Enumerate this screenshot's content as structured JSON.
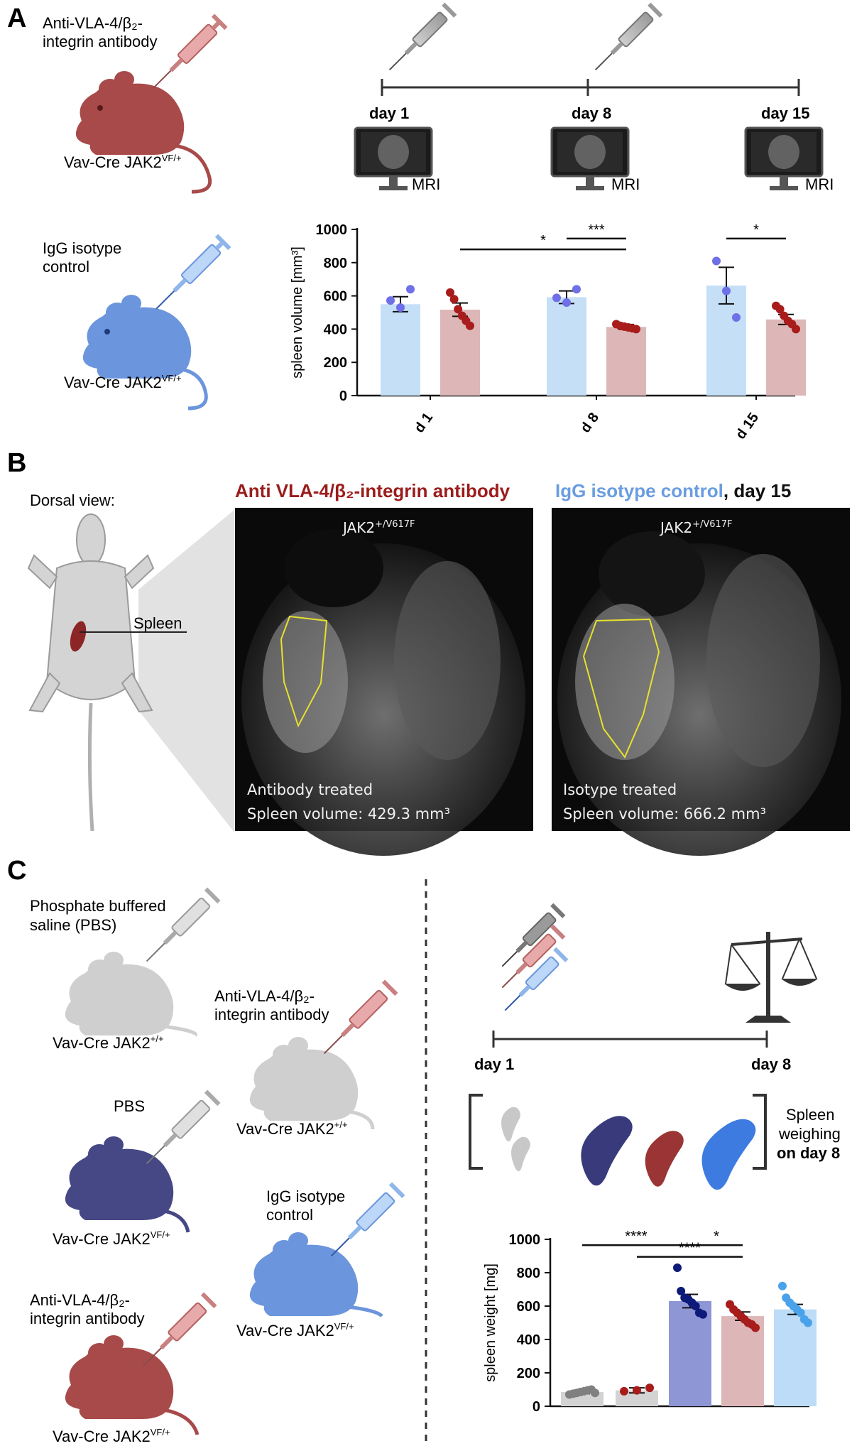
{
  "panels": {
    "a": "A",
    "b": "B",
    "c": "C"
  },
  "panelA": {
    "group1_label": [
      "Anti-VLA-4/β₂-",
      "integrin antibody"
    ],
    "group1_mouse": "Vav-Cre JAK2",
    "group1_sup": "VF/+",
    "group2_label": [
      "IgG isotype",
      "control"
    ],
    "group2_mouse": "Vav-Cre JAK2",
    "group2_sup": "VF/+",
    "timeline_days": [
      "day 1",
      "day 8",
      "day 15"
    ],
    "mri_label": "MRI"
  },
  "panelB": {
    "dorsal_view": "Dorsal view:",
    "spleen": "Spleen",
    "title_left": "Anti VLA-4/β₂-integrin antibody",
    "title_right_colored": "IgG isotype control",
    "title_right_rest": ", day 15",
    "genotype": "JAK2",
    "genotype_sup": "+/V617F",
    "left_caption1": "Antibody treated",
    "left_caption2": "Spleen volume: 429.3 mm³",
    "right_caption1": "Isotype treated",
    "right_caption2": "Spleen volume: 666.2 mm³"
  },
  "panelC": {
    "pbs_full": [
      "Phosphate buffered",
      "saline (PBS)"
    ],
    "pbs": "PBS",
    "antibody": [
      "Anti-VLA-4/β₂-",
      "integrin antibody"
    ],
    "isotype": [
      "IgG isotype",
      "control"
    ],
    "mouse_wt": "Vav-Cre JAK2",
    "sup_wt": "+/+",
    "mouse_vf": "Vav-Cre JAK2",
    "sup_vf": "VF/+",
    "day1": "day 1",
    "day8": "day 8",
    "spleen_weighing": [
      "Spleen",
      "weighing",
      "on day 8"
    ]
  },
  "colors": {
    "blue_light": "#c5dff7",
    "blue_dot": "#6f6fe8",
    "red_light": "#ddb7b7",
    "red_dot": "#a81c1c",
    "gray_light": "#d3d3d3",
    "gray_dot": "#808080",
    "navy_bar": "#8e96d6",
    "navy_dot": "#0d1a7a",
    "blue_bar": "#bcdcf7",
    "blue_dot2": "#4aa3ea",
    "title_red": "#9b1c1c",
    "title_blue": "#6a9de0"
  },
  "chart_data": [
    {
      "type": "bar",
      "ylabel": "spleen volume [mm³]",
      "ylim": [
        0,
        1000
      ],
      "yticks": [
        0,
        200,
        400,
        600,
        800,
        1000
      ],
      "categories": [
        "d 1",
        "d 8",
        "d 15"
      ],
      "series": [
        {
          "color": "blue",
          "values": [
            550,
            592,
            662
          ],
          "sem": [
            45,
            38,
            110
          ],
          "points": [
            [
              572,
              530,
              640
            ],
            [
              588,
              560,
              640
            ],
            [
              810,
              630,
              470
            ]
          ]
        },
        {
          "color": "red",
          "values": [
            517,
            413,
            458
          ],
          "sem": [
            40,
            15,
            30
          ],
          "points": [
            [
              620,
              580,
              520,
              480,
              450,
              420
            ],
            [
              430,
              420,
              415,
              410,
              405,
              400
            ],
            [
              540,
              520,
              480,
              450,
              430,
              400
            ]
          ]
        }
      ],
      "significance": [
        {
          "label": "***",
          "from": "d 8 blue",
          "to": "d 8 red"
        },
        {
          "label": "*",
          "from": "d 1 red",
          "to": "d 8 red"
        },
        {
          "label": "*",
          "from": "d 15 blue",
          "to": "d 15 red"
        }
      ]
    },
    {
      "type": "bar",
      "ylabel": "spleen weight [mg]",
      "ylim": [
        0,
        1000
      ],
      "yticks": [
        0,
        200,
        400,
        600,
        800,
        1000
      ],
      "categories": [
        "PBS JAK2+/+",
        "Anti-VLA-4/β2 JAK2+/+",
        "PBS JAK2VF/+",
        "Anti-VLA-4/β2 JAK2VF/+",
        "IgG isotype JAK2VF/+"
      ],
      "values": [
        85,
        95,
        630,
        540,
        580
      ],
      "sem": [
        10,
        15,
        40,
        25,
        30
      ],
      "points": [
        [
          70,
          75,
          80,
          85,
          90,
          95,
          100,
          80
        ],
        [
          90,
          95,
          110
        ],
        [
          830,
          690,
          650,
          640,
          620,
          600,
          560,
          550
        ],
        [
          610,
          580,
          560,
          540,
          520,
          500,
          490,
          470
        ],
        [
          720,
          650,
          620,
          600,
          580,
          560,
          520,
          500
        ]
      ],
      "significance": [
        {
          "label": "****",
          "from": 0,
          "to": 2
        },
        {
          "label": "*",
          "from": 2,
          "to": 3
        },
        {
          "label": "****",
          "from": 1,
          "to": 3
        }
      ]
    }
  ]
}
